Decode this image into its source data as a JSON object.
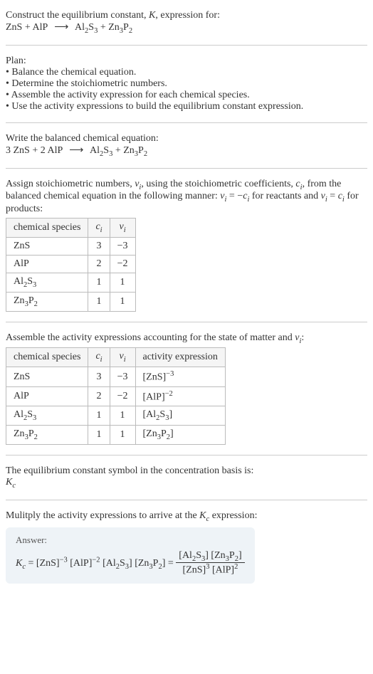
{
  "title": {
    "line1": "Construct the equilibrium constant, ",
    "k": "K",
    "line1b": ", expression for:",
    "eq_lhs": "ZnS + AlP",
    "arrow": "⟶",
    "eq_rhs_1": "Al",
    "eq_rhs_1_sub1": "2",
    "eq_rhs_1_mid": "S",
    "eq_rhs_1_sub2": "3",
    "eq_rhs_plus": " + Zn",
    "eq_rhs_2_sub1": "3",
    "eq_rhs_2_mid": "P",
    "eq_rhs_2_sub2": "2"
  },
  "plan": {
    "header": "Plan:",
    "items": [
      "Balance the chemical equation.",
      "Determine the stoichiometric numbers.",
      "Assemble the activity expression for each chemical species.",
      "Use the activity expressions to build the equilibrium constant expression."
    ]
  },
  "balanced": {
    "intro": "Write the balanced chemical equation:",
    "lhs": "3 ZnS + 2 AlP",
    "arrow": "⟶",
    "rhs_1": "Al",
    "rhs_1_sub1": "2",
    "rhs_1_mid": "S",
    "rhs_1_sub2": "3",
    "rhs_plus": " + Zn",
    "rhs_2_sub1": "3",
    "rhs_2_mid": "P",
    "rhs_2_sub2": "2"
  },
  "assign": {
    "text1": "Assign stoichiometric numbers, ",
    "nu": "ν",
    "sub_i": "i",
    "text2": ", using the stoichiometric coefficients, ",
    "c": "c",
    "text3": ", from the balanced chemical equation in the following manner: ",
    "eq1_lhs": "ν",
    "eq1_eq": " = −",
    "eq1_rhs": "c",
    "text4": " for reactants and ",
    "eq2_lhs": "ν",
    "eq2_eq": " = ",
    "eq2_rhs": "c",
    "text5": " for products:"
  },
  "table1": {
    "headers": {
      "species": "chemical species",
      "ci": "c",
      "ci_sub": "i",
      "nui": "ν",
      "nui_sub": "i"
    },
    "rows": [
      {
        "species": "ZnS",
        "ci": "3",
        "nui": "−3"
      },
      {
        "species": "AlP",
        "ci": "2",
        "nui": "−2"
      },
      {
        "species_html": "Al2S3",
        "ci": "1",
        "nui": "1"
      },
      {
        "species_html": "Zn3P2",
        "ci": "1",
        "nui": "1"
      }
    ]
  },
  "assemble": {
    "text1": "Assemble the activity expressions accounting for the state of matter and ",
    "nu": "ν",
    "sub_i": "i",
    "text2": ":"
  },
  "table2": {
    "headers": {
      "species": "chemical species",
      "ci": "c",
      "ci_sub": "i",
      "nui": "ν",
      "nui_sub": "i",
      "activity": "activity expression"
    },
    "rows": [
      {
        "species": "ZnS",
        "ci": "3",
        "nui": "−3",
        "act_base": "[ZnS]",
        "act_exp": "−3"
      },
      {
        "species": "AlP",
        "ci": "2",
        "nui": "−2",
        "act_base": "[AlP]",
        "act_exp": "−2"
      },
      {
        "species_html": "Al2S3",
        "ci": "1",
        "nui": "1",
        "act_html": "[Al2S3]"
      },
      {
        "species_html": "Zn3P2",
        "ci": "1",
        "nui": "1",
        "act_html": "[Zn3P2]"
      }
    ]
  },
  "eqconst": {
    "text": "The equilibrium constant symbol in the concentration basis is:",
    "sym": "K",
    "sub": "c"
  },
  "multiply": {
    "text1": "Mulitply the activity expressions to arrive at the ",
    "k": "K",
    "ksub": "c",
    "text2": " expression:"
  },
  "answer": {
    "label": "Answer:",
    "k": "K",
    "ksub": "c",
    "eq": " = ",
    "t1": "[ZnS]",
    "e1": "−3",
    "t2": " [AlP]",
    "e2": "−2",
    "t3_pre": " [Al",
    "t3_s1": "2",
    "t3_mid": "S",
    "t3_s2": "3",
    "t3_post": "] [Zn",
    "t3_s3": "3",
    "t3_mid2": "P",
    "t3_s4": "2",
    "t3_end": "] = ",
    "num_1": "[Al",
    "num_s1": "2",
    "num_2": "S",
    "num_s2": "3",
    "num_3": "] [Zn",
    "num_s3": "3",
    "num_4": "P",
    "num_s4": "2",
    "num_5": "]",
    "den_1": "[ZnS]",
    "den_e1": "3",
    "den_2": " [AlP]",
    "den_e2": "2"
  },
  "colors": {
    "text": "#333333",
    "border": "#bbbbbb",
    "hr": "#cccccc",
    "answer_bg": "#eef3f7"
  }
}
